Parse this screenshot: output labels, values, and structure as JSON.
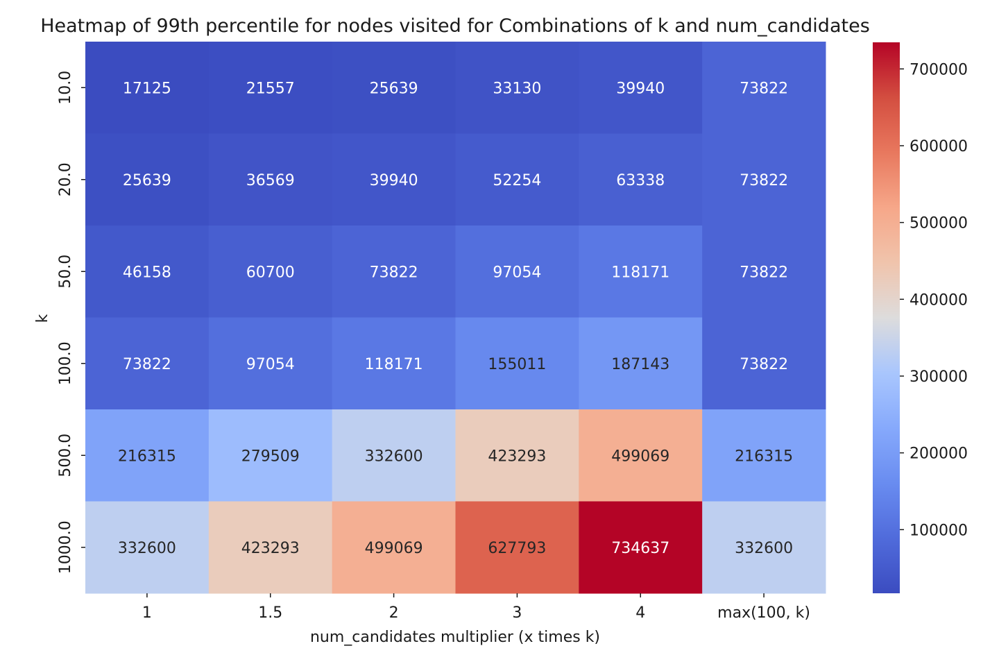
{
  "chart_data": {
    "type": "heatmap",
    "title": "Heatmap of 99th percentile for nodes visited for Combinations of k and num_candidates",
    "xlabel": "num_candidates multiplier (x times k)",
    "ylabel": "k",
    "x_categories": [
      "1",
      "1.5",
      "2",
      "3",
      "4",
      "max(100, k)"
    ],
    "y_categories": [
      "10.0",
      "20.0",
      "50.0",
      "100.0",
      "500.0",
      "1000.0"
    ],
    "values": [
      [
        17125,
        21557,
        25639,
        33130,
        39940,
        73822
      ],
      [
        25639,
        36569,
        39940,
        52254,
        63338,
        73822
      ],
      [
        46158,
        60700,
        73822,
        97054,
        118171,
        73822
      ],
      [
        73822,
        97054,
        118171,
        155011,
        187143,
        73822
      ],
      [
        216315,
        279509,
        332600,
        423293,
        499069,
        216315
      ],
      [
        332600,
        423293,
        499069,
        627793,
        734637,
        332600
      ]
    ],
    "colormap": "coolwarm",
    "colorbar": {
      "min": 17125,
      "max": 734637,
      "ticks": [
        100000,
        200000,
        300000,
        400000,
        500000,
        600000,
        700000
      ],
      "tick_labels": [
        "100000",
        "200000",
        "300000",
        "400000",
        "500000",
        "600000",
        "700000"
      ]
    },
    "annotations": true,
    "grid": false
  }
}
